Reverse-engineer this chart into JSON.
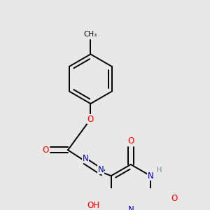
{
  "background_color": "#e8e8e8",
  "bond_color": "#000000",
  "atom_colors": {
    "O": "#ff0000",
    "N": "#0000cd",
    "H": "#4a9090",
    "C": "#000000"
  },
  "bond_width": 1.4,
  "dbo": 0.018,
  "font_size": 8.5
}
